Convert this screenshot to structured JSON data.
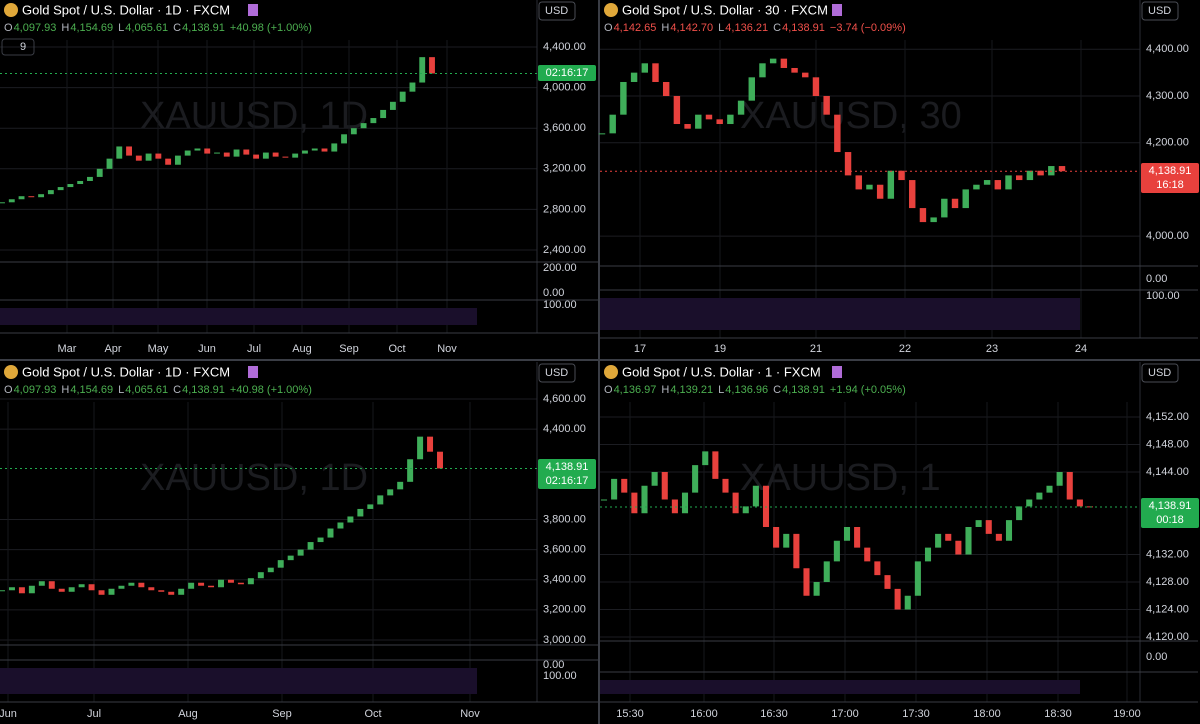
{
  "colors": {
    "up": "#3fae5a",
    "down": "#e8413d"
  },
  "panels": [
    {
      "title": "Gold Spot / U.S. Dollar · 1D · FXCM",
      "ohlc": [
        {
          "label": "O",
          "value": "4,097.93"
        },
        {
          "label": "H",
          "value": "4,154.69"
        },
        {
          "label": "L",
          "value": "4,065.61"
        },
        {
          "label": "C",
          "value": "4,138.91"
        }
      ],
      "change": "+40.98 (+1.00%)",
      "value_color": "#4caf50",
      "currency": "USD",
      "watermark": "XAUUSD, 1D",
      "indicator_count": "9",
      "price_ticks": [
        {
          "value": 4400,
          "label": "4,400.00"
        },
        {
          "value": 4000,
          "label": "4,000.00"
        },
        {
          "value": 3600,
          "label": "3,600.00"
        },
        {
          "value": 3200,
          "label": "3,200.00"
        },
        {
          "value": 2800,
          "label": "2,800.00"
        },
        {
          "value": 2400,
          "label": "2,400.00"
        }
      ],
      "badge": [
        "02:16:17"
      ],
      "badge_color": "#22ab4f",
      "indicator_ticks": [
        "200.00",
        "0.00",
        "100.00"
      ],
      "time_labels": [
        "Mar",
        "Apr",
        "May",
        "Jun",
        "Jul",
        "Aug",
        "Sep",
        "Oct",
        "Nov"
      ],
      "closes": [
        2870,
        2900,
        2930,
        2920,
        2950,
        2990,
        3020,
        3050,
        3080,
        3120,
        3200,
        3300,
        3420,
        3330,
        3280,
        3350,
        3300,
        3240,
        3330,
        3380,
        3400,
        3350,
        3360,
        3320,
        3390,
        3340,
        3300,
        3360,
        3320,
        3310,
        3350,
        3380,
        3400,
        3370,
        3450,
        3540,
        3600,
        3650,
        3700,
        3780,
        3860,
        3960,
        4050,
        4300,
        4138.91
      ]
    },
    {
      "title": "Gold Spot / U.S. Dollar · 30 · FXCM",
      "ohlc": [
        {
          "label": "O",
          "value": "4,142.65"
        },
        {
          "label": "H",
          "value": "4,142.70"
        },
        {
          "label": "L",
          "value": "4,136.21"
        },
        {
          "label": "C",
          "value": "4,138.91"
        }
      ],
      "change": "−3.74 (−0.09%)",
      "value_color": "#f0504a",
      "currency": "USD",
      "watermark": "XAUUSD, 30",
      "price_ticks": [
        {
          "value": 4400,
          "label": "4,400.00"
        },
        {
          "value": 4300,
          "label": "4,300.00"
        },
        {
          "value": 4200,
          "label": "4,200.00"
        },
        {
          "value": 4000,
          "label": "4,000.00"
        }
      ],
      "badge": [
        "4,138.91",
        "16:18"
      ],
      "badge_color": "#e8413d",
      "indicator_ticks": [
        "0.00",
        "100.00"
      ],
      "time_labels": [
        "17",
        "19",
        "21",
        "22",
        "23",
        "24"
      ],
      "closes": [
        4220,
        4260,
        4330,
        4350,
        4370,
        4330,
        4300,
        4240,
        4230,
        4260,
        4250,
        4240,
        4260,
        4290,
        4340,
        4370,
        4380,
        4360,
        4350,
        4340,
        4300,
        4260,
        4180,
        4130,
        4100,
        4110,
        4080,
        4140,
        4120,
        4060,
        4030,
        4040,
        4080,
        4060,
        4100,
        4110,
        4120,
        4100,
        4130,
        4120,
        4140,
        4130,
        4150,
        4138.91
      ]
    },
    {
      "title": "Gold Spot / U.S. Dollar · 1D · FXCM",
      "ohlc": [
        {
          "label": "O",
          "value": "4,097.93"
        },
        {
          "label": "H",
          "value": "4,154.69"
        },
        {
          "label": "L",
          "value": "4,065.61"
        },
        {
          "label": "C",
          "value": "4,138.91"
        }
      ],
      "change": "+40.98 (+1.00%)",
      "value_color": "#4caf50",
      "currency": "USD",
      "watermark": "XAUUSD, 1D",
      "price_ticks": [
        {
          "value": 4600,
          "label": "4,600.00"
        },
        {
          "value": 4400,
          "label": "4,400.00"
        },
        {
          "value": 3800,
          "label": "3,800.00"
        },
        {
          "value": 3600,
          "label": "3,600.00"
        },
        {
          "value": 3400,
          "label": "3,400.00"
        },
        {
          "value": 3200,
          "label": "3,200.00"
        },
        {
          "value": 3000,
          "label": "3,000.00"
        }
      ],
      "badge": [
        "4,138.91",
        "02:16:17"
      ],
      "badge_color": "#22ab4f",
      "indicator_ticks": [
        "0.00",
        "100.00"
      ],
      "time_labels": [
        "Jun",
        "Jul",
        "Aug",
        "Sep",
        "Oct",
        "Nov"
      ],
      "closes": [
        3330,
        3350,
        3310,
        3360,
        3390,
        3340,
        3320,
        3350,
        3370,
        3330,
        3300,
        3340,
        3360,
        3380,
        3350,
        3330,
        3320,
        3300,
        3340,
        3380,
        3360,
        3350,
        3400,
        3380,
        3370,
        3410,
        3450,
        3480,
        3530,
        3560,
        3600,
        3650,
        3680,
        3740,
        3780,
        3820,
        3870,
        3900,
        3960,
        4000,
        4050,
        4200,
        4350,
        4250,
        4138.91
      ]
    },
    {
      "title": "Gold Spot / U.S. Dollar · 1 · FXCM",
      "ohlc": [
        {
          "label": "O",
          "value": "4,136.97"
        },
        {
          "label": "H",
          "value": "4,139.21"
        },
        {
          "label": "L",
          "value": "4,136.96"
        },
        {
          "label": "C",
          "value": "4,138.91"
        }
      ],
      "change": "+1.94 (+0.05%)",
      "value_color": "#4caf50",
      "currency": "USD",
      "watermark": "XAUUSD, 1",
      "price_ticks": [
        {
          "value": 4152,
          "label": "4,152.00"
        },
        {
          "value": 4148,
          "label": "4,148.00"
        },
        {
          "value": 4144,
          "label": "4,144.00"
        },
        {
          "value": 4132,
          "label": "4,132.00"
        },
        {
          "value": 4128,
          "label": "4,128.00"
        },
        {
          "value": 4124,
          "label": "4,124.00"
        },
        {
          "value": 4120,
          "label": "4,120.00"
        }
      ],
      "badge": [
        "4,138.91",
        "00:18"
      ],
      "badge_color": "#22ab4f",
      "indicator_ticks": [
        "0.00"
      ],
      "time_labels": [
        "15:30",
        "16:00",
        "16:30",
        "17:00",
        "17:30",
        "18:00",
        "18:30",
        "19:00"
      ],
      "closes": [
        4140,
        4143,
        4141,
        4138,
        4142,
        4144,
        4140,
        4138,
        4141,
        4145,
        4147,
        4143,
        4141,
        4138,
        4139,
        4142,
        4136,
        4133,
        4135,
        4130,
        4126,
        4128,
        4131,
        4134,
        4136,
        4133,
        4131,
        4129,
        4127,
        4124,
        4126,
        4131,
        4133,
        4135,
        4134,
        4132,
        4136,
        4137,
        4135,
        4134,
        4137,
        4139,
        4140,
        4141,
        4142,
        4144,
        4140,
        4139,
        4138.91
      ]
    }
  ]
}
